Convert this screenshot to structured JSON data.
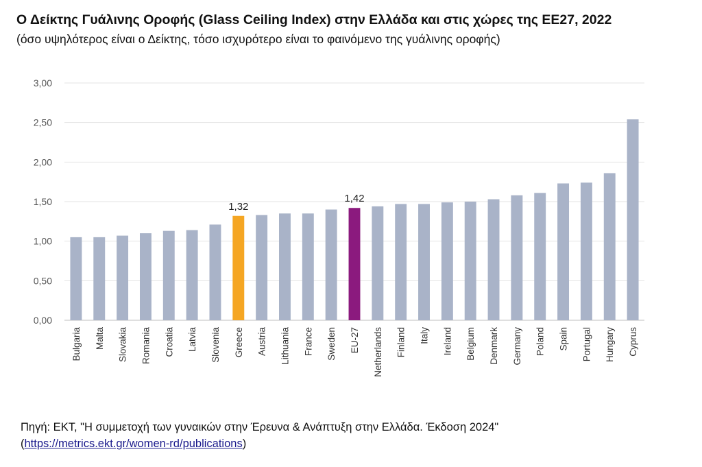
{
  "header": {
    "title": "Ο Δείκτης Γυάλινης Οροφής (Glass Ceiling Index) στην Ελλάδα και στις χώρες της ΕΕ27, 2022",
    "subtitle": "(όσο υψηλότερος είναι ο Δείκτης, τόσο ισχυρότερο είναι το φαινόμενο της γυάλινης οροφής)"
  },
  "source": {
    "text": "Πηγή: ΕΚΤ, \"Η συμμετοχή των γυναικών στην Έρευνα & Ανάπτυξη στην Ελλάδα. Έκδοση 2024\"",
    "link_open": "(",
    "link": "https://metrics.ekt.gr/women-rd/publications",
    "link_close": ")"
  },
  "chart_data": {
    "type": "bar",
    "title": "Ο Δείκτης Γυάλινης Οροφής (Glass Ceiling Index) στην Ελλάδα και στις χώρες της ΕΕ27, 2022",
    "xlabel": "",
    "ylabel": "",
    "ylim": [
      0,
      3
    ],
    "yticks": [
      "0,00",
      "0,50",
      "1,00",
      "1,50",
      "2,00",
      "2,50",
      "3,00"
    ],
    "grid": true,
    "categories": [
      "Bulgaria",
      "Malta",
      "Slovakia",
      "Romania",
      "Croatia",
      "Latvia",
      "Slovenia",
      "Greece",
      "Austria",
      "Lithuania",
      "France",
      "Sweden",
      "EU-27",
      "Netherlands",
      "Finland",
      "Italy",
      "Ireland",
      "Belgium",
      "Denmark",
      "Germany",
      "Poland",
      "Spain",
      "Portugal",
      "Hungary",
      "Cyprus"
    ],
    "values": [
      1.05,
      1.05,
      1.07,
      1.1,
      1.13,
      1.14,
      1.21,
      1.32,
      1.33,
      1.35,
      1.35,
      1.4,
      1.42,
      1.44,
      1.47,
      1.47,
      1.49,
      1.5,
      1.53,
      1.58,
      1.61,
      1.73,
      1.74,
      1.86,
      2.54
    ],
    "colors": {
      "default": "#a9b3c8",
      "Greece": "#f5a623",
      "EU-27": "#8b1a7e"
    },
    "data_labels": {
      "Greece": "1,32",
      "EU-27": "1,42"
    }
  }
}
